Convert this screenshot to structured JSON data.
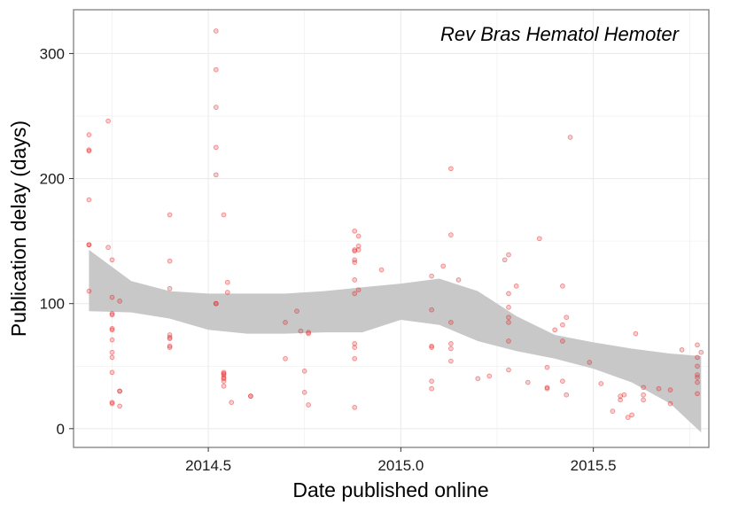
{
  "chart_data": {
    "type": "scatter",
    "xlabel": "Date published online",
    "ylabel": "Publication delay (days)",
    "annotation": "Rev Bras Hematol Hemoter",
    "xlim": [
      2014.15,
      2015.8
    ],
    "ylim": [
      -15,
      335
    ],
    "x_ticks": [
      2014.5,
      2015.0,
      2015.5
    ],
    "x_tick_labels": [
      "2014.5",
      "2015.0",
      "2015.5"
    ],
    "y_ticks": [
      0,
      100,
      200,
      300
    ],
    "y_tick_labels": [
      "0",
      "100",
      "200",
      "300"
    ],
    "grid": true,
    "legend": "none",
    "colors": {
      "points": "#e31a1c",
      "band": "#c8c8c8",
      "grid": "#ebebeb",
      "border": "#7f7f7f"
    },
    "points": [
      [
        2014.19,
        235
      ],
      [
        2014.19,
        223
      ],
      [
        2014.19,
        222
      ],
      [
        2014.19,
        183
      ],
      [
        2014.19,
        147
      ],
      [
        2014.19,
        147
      ],
      [
        2014.19,
        110
      ],
      [
        2014.24,
        246
      ],
      [
        2014.24,
        145
      ],
      [
        2014.25,
        135
      ],
      [
        2014.25,
        105
      ],
      [
        2014.25,
        92
      ],
      [
        2014.25,
        91
      ],
      [
        2014.25,
        80
      ],
      [
        2014.25,
        79
      ],
      [
        2014.25,
        71
      ],
      [
        2014.25,
        61
      ],
      [
        2014.25,
        57
      ],
      [
        2014.25,
        45
      ],
      [
        2014.25,
        21
      ],
      [
        2014.25,
        20
      ],
      [
        2014.27,
        102
      ],
      [
        2014.27,
        30
      ],
      [
        2014.27,
        30
      ],
      [
        2014.27,
        18
      ],
      [
        2014.4,
        171
      ],
      [
        2014.4,
        134
      ],
      [
        2014.4,
        112
      ],
      [
        2014.4,
        75
      ],
      [
        2014.4,
        73
      ],
      [
        2014.4,
        72
      ],
      [
        2014.4,
        66
      ],
      [
        2014.4,
        65
      ],
      [
        2014.52,
        318
      ],
      [
        2014.52,
        287
      ],
      [
        2014.52,
        257
      ],
      [
        2014.52,
        225
      ],
      [
        2014.52,
        203
      ],
      [
        2014.52,
        100
      ],
      [
        2014.52,
        100
      ],
      [
        2014.54,
        171
      ],
      [
        2014.54,
        45
      ],
      [
        2014.54,
        44
      ],
      [
        2014.54,
        43
      ],
      [
        2014.54,
        41
      ],
      [
        2014.54,
        40
      ],
      [
        2014.54,
        38
      ],
      [
        2014.54,
        34
      ],
      [
        2014.55,
        117
      ],
      [
        2014.55,
        109
      ],
      [
        2014.56,
        21
      ],
      [
        2014.61,
        26
      ],
      [
        2014.61,
        26
      ],
      [
        2014.7,
        85
      ],
      [
        2014.7,
        56
      ],
      [
        2014.73,
        94
      ],
      [
        2014.74,
        78
      ],
      [
        2014.75,
        46
      ],
      [
        2014.75,
        29
      ],
      [
        2014.76,
        77
      ],
      [
        2014.76,
        76
      ],
      [
        2014.76,
        19
      ],
      [
        2014.88,
        158
      ],
      [
        2014.88,
        143
      ],
      [
        2014.88,
        142
      ],
      [
        2014.88,
        135
      ],
      [
        2014.88,
        133
      ],
      [
        2014.88,
        119
      ],
      [
        2014.88,
        108
      ],
      [
        2014.88,
        68
      ],
      [
        2014.88,
        65
      ],
      [
        2014.88,
        56
      ],
      [
        2014.88,
        17
      ],
      [
        2014.89,
        154
      ],
      [
        2014.89,
        146
      ],
      [
        2014.89,
        143
      ],
      [
        2014.89,
        111
      ],
      [
        2014.95,
        127
      ],
      [
        2015.08,
        122
      ],
      [
        2015.08,
        95
      ],
      [
        2015.08,
        66
      ],
      [
        2015.08,
        65
      ],
      [
        2015.08,
        38
      ],
      [
        2015.08,
        32
      ],
      [
        2015.11,
        130
      ],
      [
        2015.13,
        208
      ],
      [
        2015.13,
        155
      ],
      [
        2015.13,
        85
      ],
      [
        2015.13,
        68
      ],
      [
        2015.13,
        64
      ],
      [
        2015.13,
        54
      ],
      [
        2015.15,
        119
      ],
      [
        2015.2,
        40
      ],
      [
        2015.23,
        42
      ],
      [
        2015.27,
        135
      ],
      [
        2015.28,
        139
      ],
      [
        2015.28,
        108
      ],
      [
        2015.28,
        97
      ],
      [
        2015.28,
        89
      ],
      [
        2015.28,
        85
      ],
      [
        2015.28,
        70
      ],
      [
        2015.28,
        47
      ],
      [
        2015.3,
        114
      ],
      [
        2015.33,
        37
      ],
      [
        2015.36,
        152
      ],
      [
        2015.38,
        49
      ],
      [
        2015.38,
        33
      ],
      [
        2015.38,
        32
      ],
      [
        2015.4,
        79
      ],
      [
        2015.42,
        114
      ],
      [
        2015.42,
        83
      ],
      [
        2015.42,
        70
      ],
      [
        2015.42,
        38
      ],
      [
        2015.43,
        89
      ],
      [
        2015.43,
        27
      ],
      [
        2015.44,
        233
      ],
      [
        2015.49,
        53
      ],
      [
        2015.52,
        36
      ],
      [
        2015.55,
        14
      ],
      [
        2015.57,
        26
      ],
      [
        2015.57,
        23
      ],
      [
        2015.58,
        27
      ],
      [
        2015.59,
        9
      ],
      [
        2015.6,
        11
      ],
      [
        2015.61,
        76
      ],
      [
        2015.63,
        33
      ],
      [
        2015.63,
        27
      ],
      [
        2015.63,
        23
      ],
      [
        2015.67,
        32
      ],
      [
        2015.7,
        31
      ],
      [
        2015.7,
        20
      ],
      [
        2015.73,
        63
      ],
      [
        2015.77,
        67
      ],
      [
        2015.77,
        57
      ],
      [
        2015.77,
        50
      ],
      [
        2015.77,
        43
      ],
      [
        2015.77,
        41
      ],
      [
        2015.77,
        37
      ],
      [
        2015.77,
        28
      ],
      [
        2015.78,
        61
      ]
    ],
    "smooth_band": {
      "x": [
        2014.19,
        2014.3,
        2014.4,
        2014.5,
        2014.6,
        2014.7,
        2014.8,
        2014.9,
        2015.0,
        2015.1,
        2015.2,
        2015.3,
        2015.4,
        2015.5,
        2015.6,
        2015.7,
        2015.78
      ],
      "upper": [
        143,
        118,
        110,
        108,
        108,
        108,
        110,
        113,
        116,
        120,
        110,
        90,
        75,
        69,
        64,
        60,
        58
      ],
      "lower": [
        94,
        93,
        88,
        79,
        76,
        76,
        77,
        77,
        87,
        83,
        70,
        62,
        56,
        48,
        37,
        20,
        -3
      ]
    }
  }
}
